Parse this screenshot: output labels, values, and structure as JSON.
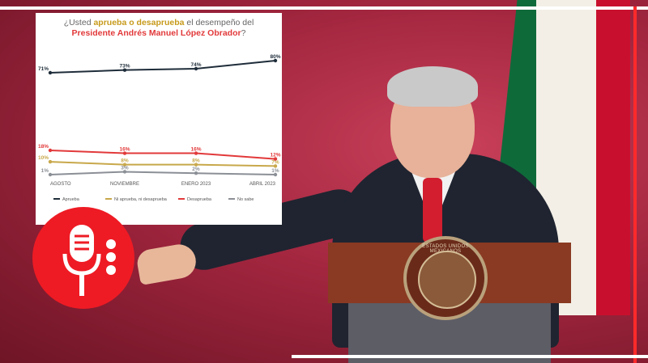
{
  "chart_data": {
    "type": "line",
    "title_parts": [
      {
        "text": "¿Usted ",
        "style": "plain"
      },
      {
        "text": "aprueba o desaprueba",
        "style": "gold"
      },
      {
        "text": " el desempeño del",
        "style": "plain"
      },
      {
        "text": "Presidente Andrés Manuel López Obrador",
        "style": "red"
      },
      {
        "text": "?",
        "style": "plain"
      }
    ],
    "categories": [
      "AGOSTO",
      "NOVIEMBRE",
      "ENERO 2023",
      "ABRIL 2023"
    ],
    "series": [
      {
        "name": "Aprueba",
        "color": "#1f2d3a",
        "values": [
          71,
          73,
          74,
          80
        ],
        "labels": [
          "71%",
          "73%",
          "74%",
          "80%"
        ]
      },
      {
        "name": "Ni aprueba, ni desaprueba",
        "color": "#c8a84b",
        "values": [
          10,
          8,
          8,
          7
        ],
        "labels": [
          "10%",
          "8%",
          "8%",
          "7%"
        ]
      },
      {
        "name": "Desaprueba",
        "color": "#e2393a",
        "values": [
          18,
          16,
          16,
          12
        ],
        "labels": [
          "18%",
          "16%",
          "16%",
          "12%"
        ]
      },
      {
        "name": "No sabe",
        "color": "#8b8f96",
        "values": [
          1,
          3,
          2,
          1
        ],
        "labels": [
          "1%",
          "3%",
          "2%",
          "1%"
        ]
      }
    ],
    "legend_position": "bottom",
    "grid": false
  },
  "podium": {
    "seal_text": "ESTADOS UNIDOS MEXICANOS"
  }
}
